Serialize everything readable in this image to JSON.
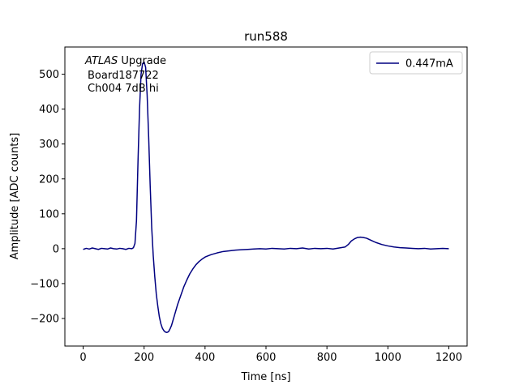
{
  "chart_data": {
    "type": "line",
    "title": "run588",
    "xlabel": "Time [ns]",
    "ylabel": "Amplitude [ADC counts]",
    "annotation_label": "ATLAS",
    "annotation_suffix": "Upgrade",
    "annotation_lines": [
      "Board187722",
      "Ch004 7dB hi"
    ],
    "legend": "upper right",
    "x": [
      0,
      10,
      20,
      30,
      40,
      50,
      60,
      70,
      80,
      90,
      100,
      110,
      120,
      130,
      140,
      150,
      160,
      165,
      170,
      175,
      180,
      185,
      190,
      195,
      200,
      205,
      210,
      215,
      220,
      225,
      230,
      235,
      240,
      245,
      250,
      255,
      260,
      265,
      270,
      275,
      280,
      285,
      290,
      295,
      300,
      310,
      320,
      330,
      340,
      350,
      360,
      370,
      380,
      390,
      400,
      420,
      440,
      460,
      480,
      500,
      520,
      540,
      560,
      580,
      600,
      620,
      640,
      660,
      680,
      700,
      720,
      740,
      760,
      780,
      800,
      820,
      840,
      860,
      870,
      880,
      890,
      900,
      910,
      920,
      930,
      940,
      950,
      960,
      980,
      1000,
      1020,
      1040,
      1060,
      1080,
      1100,
      1120,
      1140,
      1160,
      1180,
      1200
    ],
    "series": [
      {
        "name": "0.447mA",
        "color": "#000080",
        "values": [
          -2,
          1,
          -1,
          2,
          0,
          -2,
          1,
          0,
          -1,
          2,
          0,
          -1,
          1,
          0,
          -2,
          1,
          0,
          3,
          15,
          80,
          250,
          400,
          500,
          530,
          535,
          520,
          440,
          320,
          180,
          60,
          -20,
          -80,
          -130,
          -165,
          -195,
          -215,
          -228,
          -235,
          -239,
          -240,
          -238,
          -230,
          -220,
          -205,
          -190,
          -160,
          -135,
          -110,
          -90,
          -72,
          -58,
          -46,
          -37,
          -30,
          -24,
          -17,
          -12,
          -8,
          -6,
          -4,
          -3,
          -2,
          -1,
          0,
          -1,
          1,
          0,
          -1,
          1,
          0,
          2,
          -1,
          1,
          0,
          1,
          -1,
          2,
          5,
          12,
          22,
          28,
          32,
          33,
          32,
          30,
          26,
          22,
          18,
          12,
          8,
          5,
          3,
          2,
          1,
          0,
          1,
          -1,
          0,
          1,
          0
        ]
      }
    ],
    "xlim": [
      -60,
      1260
    ],
    "xticks": [
      0,
      200,
      400,
      600,
      800,
      1000,
      1200
    ],
    "ylim": [
      -279,
      578
    ],
    "yticks": [
      {
        "value": -200,
        "label": "−200"
      },
      {
        "value": -100,
        "label": "−100"
      },
      0,
      100,
      200,
      300,
      400,
      500
    ]
  }
}
